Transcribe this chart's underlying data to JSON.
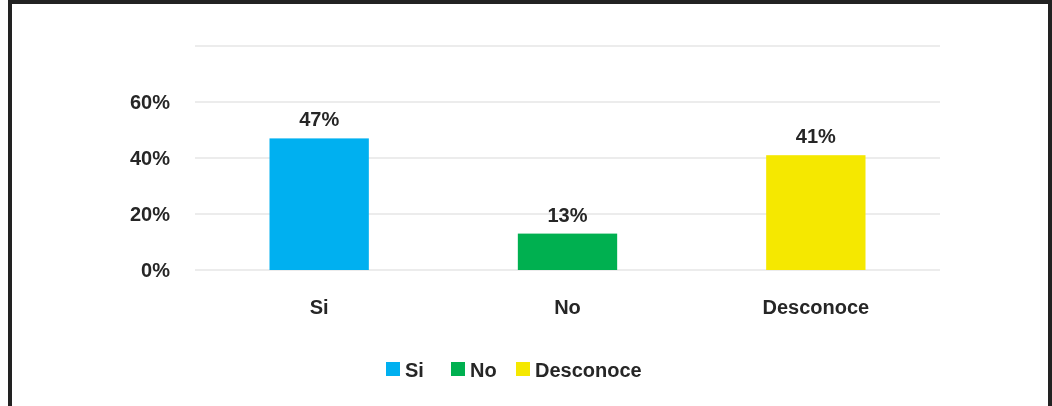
{
  "chart_data": {
    "type": "bar",
    "categories": [
      "Si",
      "No",
      "Desconoce"
    ],
    "series": [
      {
        "name": "Si",
        "color": "#00b0f0",
        "values": [
          47,
          null,
          null
        ],
        "value_labels": [
          "47%",
          null,
          null
        ]
      },
      {
        "name": "No",
        "color": "#00b050",
        "values": [
          null,
          13,
          null
        ],
        "value_labels": [
          null,
          "13%",
          null
        ]
      },
      {
        "name": "Desconoce",
        "color": "#f5e800",
        "values": [
          null,
          null,
          41
        ],
        "value_labels": [
          null,
          null,
          "41%"
        ]
      }
    ],
    "ylim": [
      0,
      80
    ],
    "yticks": [
      {
        "value": 0,
        "label": "0%"
      },
      {
        "value": 20,
        "label": "20%"
      },
      {
        "value": 40,
        "label": "40%"
      },
      {
        "value": 60,
        "label": "60%"
      },
      {
        "value": 80,
        "label": null
      }
    ],
    "grid": "y",
    "legend": "bottom"
  }
}
